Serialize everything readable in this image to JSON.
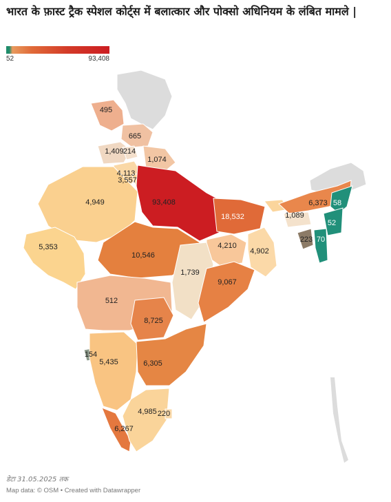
{
  "title": "भारत के फ़ास्ट ट्रैक स्पेशल कोर्ट्स में बलात्कार और पोक्सो अधिनियम के लंबित मामले |",
  "legend": {
    "min": "52",
    "max": "93,408"
  },
  "colors": {
    "low": "#1e8c6b",
    "high": "#cc1d22",
    "nodata": "#dcdcdc"
  },
  "regions": [
    {
      "label": "495",
      "value": 495
    },
    {
      "label": "665",
      "value": 665
    },
    {
      "label": "1,409",
      "value": 1409
    },
    {
      "label": "214",
      "value": 214
    },
    {
      "label": "1,074",
      "value": 1074
    },
    {
      "label": "4,113",
      "value": 4113
    },
    {
      "label": "3,557",
      "value": 3557
    },
    {
      "label": "4,949",
      "value": 4949
    },
    {
      "label": "93,408",
      "value": 93408
    },
    {
      "label": "18,532",
      "value": 18532
    },
    {
      "label": "6,373",
      "value": 6373
    },
    {
      "label": "58",
      "value": 58
    },
    {
      "label": "1,089",
      "value": 1089
    },
    {
      "label": "52",
      "value": 52
    },
    {
      "label": "223",
      "value": 223
    },
    {
      "label": "70",
      "value": 70
    },
    {
      "label": "4,210",
      "value": 4210
    },
    {
      "label": "4,902",
      "value": 4902
    },
    {
      "label": "5,353",
      "value": 5353
    },
    {
      "label": "10,546",
      "value": 10546
    },
    {
      "label": "1,739",
      "value": 1739
    },
    {
      "label": "9,067",
      "value": 9067
    },
    {
      "label": "512",
      "value": 512
    },
    {
      "label": "8,725",
      "value": 8725
    },
    {
      "label": "154",
      "value": 154
    },
    {
      "label": "5,435",
      "value": 5435
    },
    {
      "label": "6,305",
      "value": 6305
    },
    {
      "label": "4,985",
      "value": 4985
    },
    {
      "label": "220",
      "value": 220
    },
    {
      "label": "6,267",
      "value": 6267
    }
  ],
  "footer": {
    "date_note": "डेटा 31.05.2025 तक",
    "credits": "Map data: © OSM  • Created with Datawrapper"
  }
}
